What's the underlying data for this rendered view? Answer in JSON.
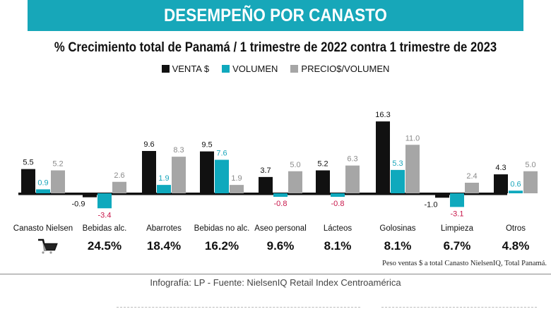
{
  "header": {
    "banner": "DESEMPEÑO POR CANASTO"
  },
  "chart_data": {
    "type": "bar",
    "title": "% Crecimiento total de Panamá / 1 trimestre de 2022 contra 1 trimestre de 2023",
    "categories": [
      "Canasto Nielsen",
      "Bebidas alc.",
      "Abarrotes",
      "Bebidas no alc.",
      "Aseo personal",
      "Lácteos",
      "Golosinas",
      "Limpieza",
      "Otros"
    ],
    "series": [
      {
        "name": "VENTA $",
        "color": "#111111",
        "values": [
          5.5,
          -0.9,
          9.6,
          9.5,
          3.7,
          5.2,
          16.3,
          -1.0,
          4.3
        ]
      },
      {
        "name": "VOLUMEN",
        "color": "#0fa9bd",
        "values": [
          0.9,
          -3.4,
          1.9,
          7.6,
          -0.8,
          -0.8,
          5.3,
          -3.1,
          0.6
        ]
      },
      {
        "name": "PRECIO$/VOLUMEN",
        "color": "#a6a6a6",
        "values": [
          5.2,
          2.6,
          8.3,
          1.9,
          5.0,
          6.3,
          11.0,
          2.4,
          5.0
        ]
      }
    ],
    "label_colors": {
      "venta": "#111111",
      "volumen": "#1aa6bb",
      "precio": "#8a8a8a",
      "negative": "#c8164a"
    },
    "weights": [
      "",
      "24.5%",
      "18.4%",
      "16.2%",
      "9.6%",
      "8.1%",
      "8.1%",
      "6.7%",
      "4.8%"
    ],
    "weights_note": "Peso ventas $ a total Canasto NielsenIQ, Total Panamá.",
    "legend_placement": "top",
    "grid": false
  },
  "footer": {
    "source": "Infografía: LP - Fuente: NielsenIQ Retail Index Centroamérica"
  }
}
